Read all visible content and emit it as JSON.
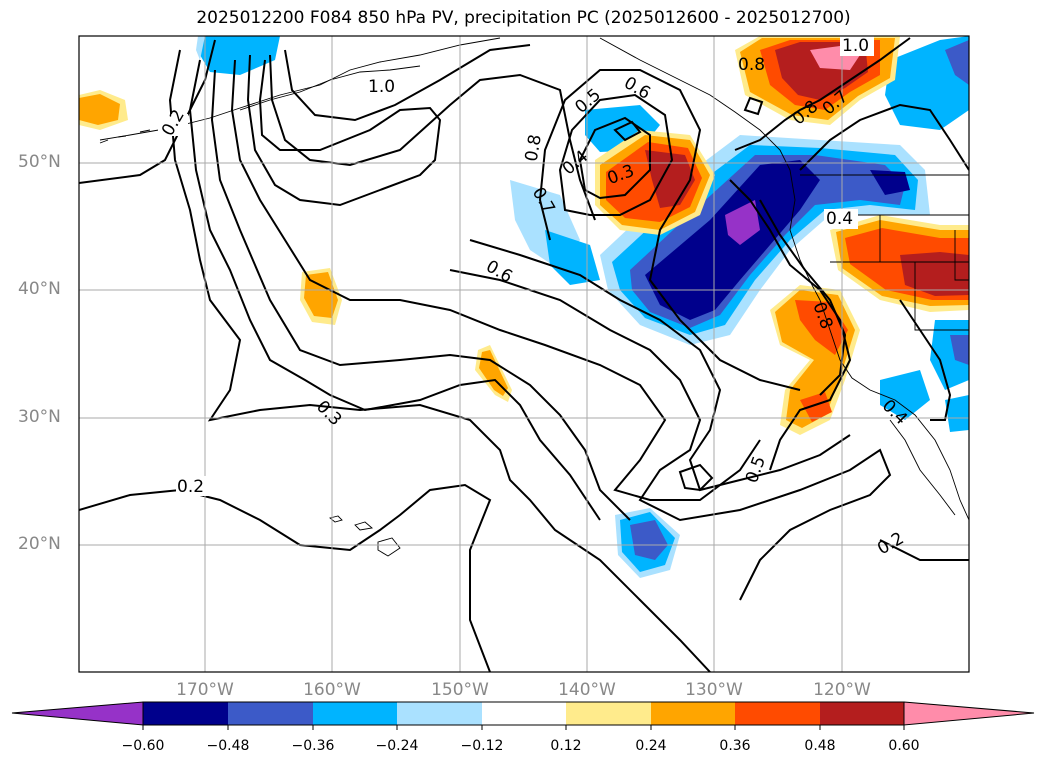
{
  "title": "2025012200 F084 850 hPa PV, precipitation PC (2025012600 - 2025012700)",
  "latitude_labels": [
    "50°N",
    "40°N",
    "30°N",
    "20°N"
  ],
  "longitude_labels": [
    "170°W",
    "160°W",
    "150°W",
    "140°W",
    "130°W",
    "120°W"
  ],
  "contour_labels": [
    "1.0",
    "1.0",
    "0.2",
    "0.2",
    "0.5",
    "0.6",
    "0.8",
    "0.4",
    "0.3",
    "0.7",
    "0.8",
    "0.7",
    "0.8",
    "0.4",
    "0.6",
    "0.3",
    "0.8",
    "0.5",
    "0.2",
    "0.4"
  ],
  "colorbar": {
    "tick_labels": [
      "−0.60",
      "−0.48",
      "−0.36",
      "−0.24",
      "−0.12",
      "0.12",
      "0.24",
      "0.36",
      "0.48",
      "0.60"
    ],
    "colors": [
      "#9632c8",
      "#00008c",
      "#3c5ac8",
      "#00b4ff",
      "#aae1ff",
      "#ffffff",
      "#ffeb8c",
      "#ffa500",
      "#ff4b00",
      "#b41e1e",
      "#ff8caa"
    ]
  },
  "map_colors": {
    "neg_strong": "#00008c",
    "neg_mid": "#3c5ac8",
    "neg_light": "#00b4ff",
    "neg_pale": "#aae1ff",
    "pos_pale": "#ffeb8c",
    "pos_light": "#ffa500",
    "pos_mid": "#ff4b00",
    "pos_strong": "#b41e1e",
    "purple": "#9632c8",
    "pink": "#ff8caa",
    "grid": "#aaaaaa"
  }
}
